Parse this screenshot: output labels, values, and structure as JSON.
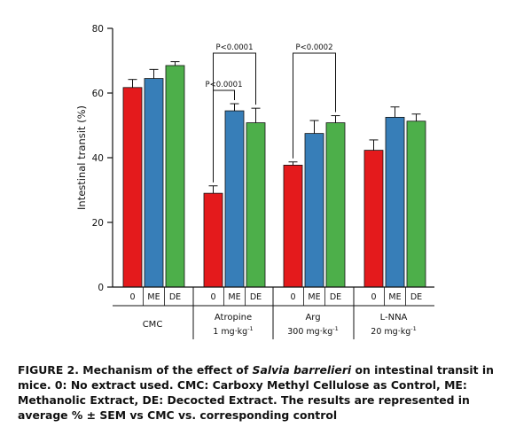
{
  "chart_data": {
    "type": "bar",
    "ylabel": "Intestinal transit (%)",
    "ylim": [
      0,
      80
    ],
    "yticks": [
      0,
      20,
      40,
      60,
      80
    ],
    "grid": false,
    "bar_labels": [
      "0",
      "ME",
      "DE"
    ],
    "groups": [
      {
        "name": "CMC",
        "dose": "",
        "dose_sup": ""
      },
      {
        "name": "Atropine",
        "dose": "1 mg·kg",
        "dose_sup": "-1"
      },
      {
        "name": "Arg",
        "dose": "300 mg·kg",
        "dose_sup": "-1"
      },
      {
        "name": "L-NNA",
        "dose": "20 mg·kg",
        "dose_sup": "-1"
      }
    ],
    "series": [
      {
        "label": "0",
        "color": "#e41a1c",
        "values": [
          61.7,
          29.0,
          37.7,
          42.3
        ],
        "sem": [
          2.5,
          2.3,
          1.0,
          3.2
        ]
      },
      {
        "label": "ME",
        "color": "#377eb8",
        "values": [
          64.5,
          54.5,
          47.5,
          52.5
        ],
        "sem": [
          2.8,
          2.2,
          4.0,
          3.2
        ]
      },
      {
        "label": "DE",
        "color": "#4daf4a",
        "values": [
          68.5,
          50.8,
          50.8,
          51.3
        ],
        "sem": [
          1.2,
          4.5,
          2.2,
          2.2
        ]
      }
    ],
    "annotations": [
      {
        "text": "P<0.0001",
        "group": 1,
        "from": "0",
        "to": "ME"
      },
      {
        "text": "P<0.0001",
        "group": 1,
        "from": "0",
        "to": "DE"
      },
      {
        "text": "P<0.0002",
        "group": 2,
        "from": "0",
        "to": "DE"
      }
    ]
  },
  "caption": {
    "prefix": "FIGURE 2. Mechanism of the effect of ",
    "italic": "Salvia barrelieri",
    "suffix": " on intestinal transit in mice. 0: No extract used. CMC: Carboxy Methyl Cellulose as Control, ME: Methanolic Extract, DE: Decocted Extract. The results are represented in average % ± SEM vs CMC vs. corresponding control"
  }
}
